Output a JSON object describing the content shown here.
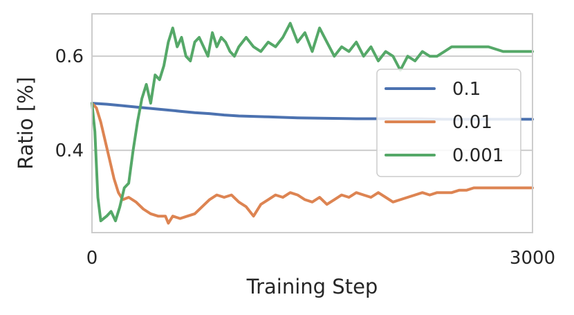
{
  "chart_data": {
    "type": "line",
    "title": "",
    "xlabel": "Training Step",
    "ylabel": "Ratio [%]",
    "xlim": [
      0,
      3000
    ],
    "ylim": [
      0.225,
      0.69
    ],
    "xticks": [
      0,
      3000
    ],
    "xtick_labels": [
      "0",
      "3000"
    ],
    "yticks": [
      0.4,
      0.6
    ],
    "ytick_labels": [
      "0.4",
      "0.6"
    ],
    "grid": "horizontal",
    "legend_position": "center-right",
    "series": [
      {
        "name": "0.1",
        "color": "#4c72b0",
        "x": [
          0,
          100,
          200,
          300,
          400,
          500,
          600,
          700,
          800,
          900,
          1000,
          1200,
          1400,
          1600,
          1800,
          2000,
          2200,
          2400,
          2600,
          2800,
          3000
        ],
        "y": [
          0.5,
          0.498,
          0.495,
          0.492,
          0.489,
          0.486,
          0.483,
          0.48,
          0.478,
          0.475,
          0.473,
          0.471,
          0.469,
          0.468,
          0.467,
          0.467,
          0.467,
          0.466,
          0.466,
          0.466,
          0.466
        ]
      },
      {
        "name": "0.01",
        "color": "#dd8452",
        "x": [
          0,
          30,
          60,
          90,
          120,
          150,
          180,
          210,
          250,
          300,
          350,
          400,
          450,
          500,
          520,
          550,
          600,
          650,
          700,
          750,
          800,
          850,
          900,
          950,
          1000,
          1050,
          1100,
          1150,
          1200,
          1250,
          1300,
          1350,
          1400,
          1450,
          1500,
          1550,
          1600,
          1650,
          1700,
          1750,
          1800,
          1850,
          1900,
          1950,
          2000,
          2050,
          2100,
          2150,
          2200,
          2250,
          2300,
          2350,
          2400,
          2450,
          2500,
          2550,
          2600,
          2700,
          2800,
          2900,
          3000
        ],
        "y": [
          0.5,
          0.49,
          0.46,
          0.42,
          0.38,
          0.34,
          0.31,
          0.295,
          0.3,
          0.29,
          0.275,
          0.265,
          0.26,
          0.26,
          0.245,
          0.26,
          0.255,
          0.26,
          0.265,
          0.28,
          0.295,
          0.305,
          0.3,
          0.305,
          0.29,
          0.28,
          0.26,
          0.285,
          0.295,
          0.305,
          0.3,
          0.31,
          0.305,
          0.295,
          0.29,
          0.3,
          0.285,
          0.295,
          0.305,
          0.3,
          0.31,
          0.305,
          0.3,
          0.31,
          0.3,
          0.29,
          0.295,
          0.3,
          0.305,
          0.31,
          0.305,
          0.31,
          0.31,
          0.31,
          0.315,
          0.315,
          0.32,
          0.32,
          0.32,
          0.32,
          0.32
        ]
      },
      {
        "name": "0.001",
        "color": "#55a868",
        "x": [
          0,
          20,
          40,
          60,
          80,
          100,
          130,
          160,
          190,
          220,
          250,
          280,
          310,
          340,
          370,
          400,
          430,
          460,
          490,
          520,
          550,
          580,
          610,
          640,
          670,
          700,
          730,
          760,
          790,
          820,
          850,
          880,
          910,
          940,
          970,
          1000,
          1050,
          1100,
          1150,
          1200,
          1250,
          1300,
          1350,
          1400,
          1450,
          1500,
          1550,
          1600,
          1650,
          1700,
          1750,
          1800,
          1850,
          1900,
          1950,
          2000,
          2050,
          2100,
          2150,
          2200,
          2250,
          2300,
          2350,
          2400,
          2450,
          2500,
          2550,
          2600,
          2700,
          2800,
          2900,
          3000
        ],
        "y": [
          0.5,
          0.44,
          0.3,
          0.25,
          0.255,
          0.26,
          0.27,
          0.25,
          0.28,
          0.32,
          0.33,
          0.4,
          0.46,
          0.51,
          0.54,
          0.5,
          0.56,
          0.55,
          0.58,
          0.63,
          0.66,
          0.62,
          0.64,
          0.6,
          0.59,
          0.63,
          0.64,
          0.62,
          0.6,
          0.65,
          0.62,
          0.64,
          0.63,
          0.61,
          0.6,
          0.62,
          0.64,
          0.62,
          0.61,
          0.63,
          0.62,
          0.64,
          0.67,
          0.63,
          0.65,
          0.61,
          0.66,
          0.63,
          0.6,
          0.62,
          0.61,
          0.63,
          0.6,
          0.62,
          0.59,
          0.61,
          0.6,
          0.57,
          0.6,
          0.59,
          0.61,
          0.6,
          0.6,
          0.61,
          0.62,
          0.62,
          0.62,
          0.62,
          0.62,
          0.61,
          0.61,
          0.61
        ]
      }
    ]
  }
}
